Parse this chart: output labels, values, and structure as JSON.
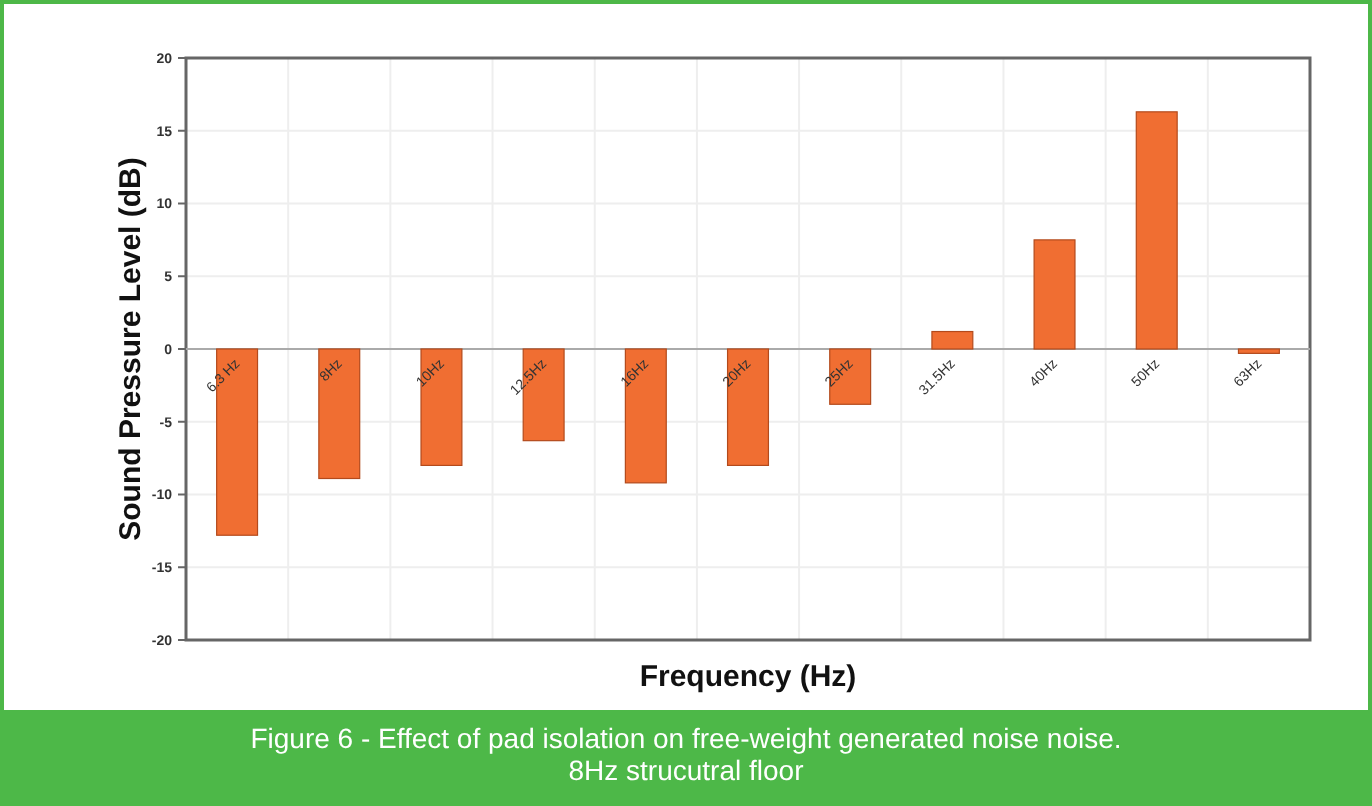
{
  "chart_data": {
    "type": "bar",
    "title": "Figure 6 - Effect of pad isolation on free-weight generated noise noise.\n8Hz strucutral floor",
    "xlabel": "Frequency (Hz)",
    "ylabel": "Sound Pressure Level (dB)",
    "categories": [
      "6.3 Hz",
      "8Hz",
      "10Hz",
      "12.5Hz",
      "16Hz",
      "20Hz",
      "25Hz",
      "31.5Hz",
      "40Hz",
      "50Hz",
      "63Hz"
    ],
    "values": [
      -12.8,
      -8.9,
      -8.0,
      -6.3,
      -9.2,
      -8.0,
      -3.8,
      1.2,
      7.5,
      16.3,
      -0.3
    ],
    "color": "#f06e32",
    "ylim": [
      -20,
      20
    ],
    "yticks": [
      -20,
      -15,
      -10,
      -5,
      0,
      5,
      10,
      15,
      20
    ],
    "grid": true
  }
}
